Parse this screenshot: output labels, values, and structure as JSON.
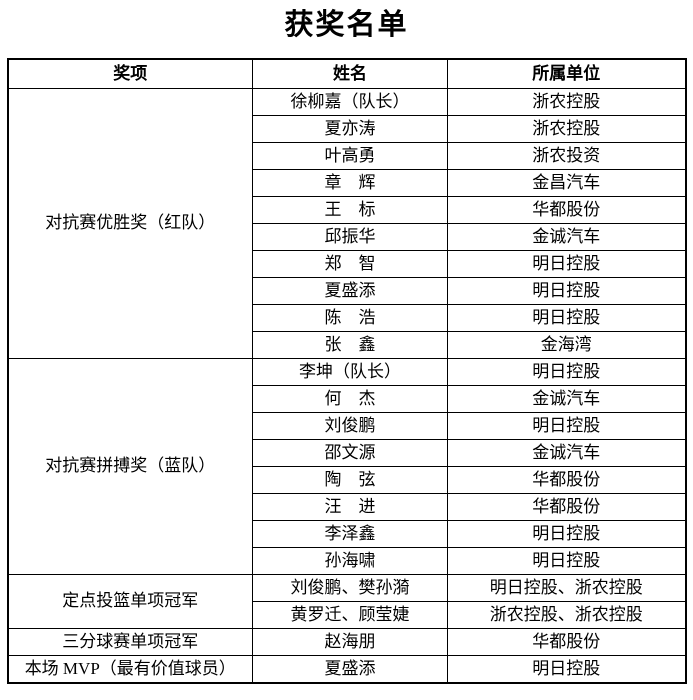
{
  "title": "获奖名单",
  "table": {
    "headers": [
      "奖项",
      "姓名",
      "所属单位"
    ],
    "groups": [
      {
        "award": "对抗赛优胜奖（红队）",
        "rows": [
          {
            "name": "徐柳嘉（队长）",
            "unit": "浙农控股"
          },
          {
            "name": "夏亦涛",
            "unit": "浙农控股"
          },
          {
            "name": "叶高勇",
            "unit": "浙农投资"
          },
          {
            "name": "章　辉",
            "unit": "金昌汽车"
          },
          {
            "name": "王　标",
            "unit": "华都股份"
          },
          {
            "name": "邱振华",
            "unit": "金诚汽车"
          },
          {
            "name": "郑　智",
            "unit": "明日控股"
          },
          {
            "name": "夏盛添",
            "unit": "明日控股"
          },
          {
            "name": "陈　浩",
            "unit": "明日控股"
          },
          {
            "name": "张　鑫",
            "unit": "金海湾"
          }
        ]
      },
      {
        "award": "对抗赛拼搏奖（蓝队）",
        "rows": [
          {
            "name": "李坤（队长）",
            "unit": "明日控股"
          },
          {
            "name": "何　杰",
            "unit": "金诚汽车"
          },
          {
            "name": "刘俊鹏",
            "unit": "明日控股"
          },
          {
            "name": "邵文源",
            "unit": "金诚汽车"
          },
          {
            "name": "陶　弦",
            "unit": "华都股份"
          },
          {
            "name": "汪　进",
            "unit": "华都股份"
          },
          {
            "name": "李泽鑫",
            "unit": "明日控股"
          },
          {
            "name": "孙海啸",
            "unit": "明日控股"
          }
        ]
      },
      {
        "award": "定点投篮单项冠军",
        "rows": [
          {
            "name": "刘俊鹏、樊孙漪",
            "unit": "明日控股、浙农控股"
          },
          {
            "name": "黄罗迁、顾莹婕",
            "unit": "浙农控股、浙农控股"
          }
        ]
      },
      {
        "award": "三分球赛单项冠军",
        "rows": [
          {
            "name": "赵海朋",
            "unit": "华都股份"
          }
        ]
      },
      {
        "award": "本场 MVP（最有价值球员）",
        "rows": [
          {
            "name": "夏盛添",
            "unit": "明日控股"
          }
        ]
      }
    ]
  }
}
